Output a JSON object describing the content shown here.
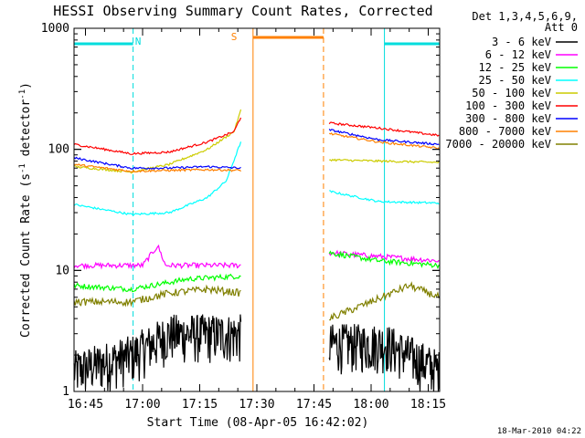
{
  "chart_data": {
    "type": "line",
    "title": "HESSI Observing Summary Count Rates, Corrected",
    "xlabel": "Start Time (08-Apr-05 16:42:02)",
    "ylabel_main": "Corrected Count Rate (s",
    "ylabel_sup1": "-1",
    "ylabel_mid": " detector",
    "ylabel_sup2": "-1",
    "ylabel_end": ")",
    "yscale": "log",
    "ylim": [
      1,
      1000
    ],
    "xlim_minutes": [
      0,
      96
    ],
    "x_ticks": [
      "16:45",
      "17:00",
      "17:15",
      "17:30",
      "17:45",
      "18:00",
      "18:15"
    ],
    "y_ticks": [
      "1",
      "10",
      "100",
      "1000"
    ],
    "legend_header": [
      "Det 1,3,4,5,6,9,",
      "Att 0"
    ],
    "timestamp": "18-Mar-2010 04:22",
    "night_label": "N",
    "saa_label": "S",
    "night_intervals": [
      [
        0,
        15.5
      ],
      [
        81.5,
        96
      ]
    ],
    "saa_interval": [
      47,
      65.5
    ],
    "data_gap": [
      44.5,
      67
    ],
    "series": [
      {
        "name": "3 - 6 keV",
        "color": "#000000",
        "before": [
          [
            0,
            1.5
          ],
          [
            15,
            2
          ],
          [
            25,
            3
          ],
          [
            35,
            3
          ],
          [
            44,
            3
          ]
        ],
        "after": [
          [
            67,
            2.5
          ],
          [
            82,
            2.5
          ],
          [
            96,
            1.5
          ]
        ],
        "noise": 0.45
      },
      {
        "name": "6 - 12 keV",
        "color": "#ff00ff",
        "before": [
          [
            0,
            11
          ],
          [
            18,
            11
          ],
          [
            22,
            16
          ],
          [
            24,
            11
          ],
          [
            44,
            11
          ]
        ],
        "after": [
          [
            67,
            14
          ],
          [
            96,
            12
          ]
        ],
        "noise": 0.05
      },
      {
        "name": "12 - 25 keV",
        "color": "#00ff00",
        "before": [
          [
            0,
            7.5
          ],
          [
            15,
            7
          ],
          [
            30,
            8.5
          ],
          [
            44,
            9
          ]
        ],
        "after": [
          [
            67,
            14
          ],
          [
            80,
            12
          ],
          [
            96,
            11
          ]
        ],
        "noise": 0.05
      },
      {
        "name": "25 - 50 keV",
        "color": "#00ffff",
        "before": [
          [
            0,
            35
          ],
          [
            15,
            29
          ],
          [
            25,
            30
          ],
          [
            35,
            40
          ],
          [
            40,
            55
          ],
          [
            44,
            120
          ]
        ],
        "after": [
          [
            67,
            45
          ],
          [
            80,
            37
          ],
          [
            96,
            36
          ]
        ],
        "noise": 0.02
      },
      {
        "name": "50 - 100 keV",
        "color": "#cccc00",
        "before": [
          [
            0,
            72
          ],
          [
            15,
            65
          ],
          [
            25,
            75
          ],
          [
            35,
            100
          ],
          [
            42,
            140
          ],
          [
            44,
            220
          ]
        ],
        "after": [
          [
            67,
            82
          ],
          [
            80,
            80
          ],
          [
            96,
            78
          ]
        ],
        "noise": 0.02
      },
      {
        "name": "100 - 300 keV",
        "color": "#ff0000",
        "before": [
          [
            0,
            110
          ],
          [
            15,
            92
          ],
          [
            25,
            95
          ],
          [
            35,
            115
          ],
          [
            42,
            140
          ],
          [
            44,
            190
          ]
        ],
        "after": [
          [
            67,
            165
          ],
          [
            80,
            150
          ],
          [
            96,
            130
          ]
        ],
        "noise": 0.02
      },
      {
        "name": "300 - 800 keV",
        "color": "#0000ff",
        "before": [
          [
            0,
            85
          ],
          [
            15,
            70
          ],
          [
            25,
            70
          ],
          [
            35,
            72
          ],
          [
            44,
            70
          ]
        ],
        "after": [
          [
            67,
            145
          ],
          [
            80,
            120
          ],
          [
            96,
            110
          ]
        ],
        "noise": 0.02
      },
      {
        "name": "800 - 7000 keV",
        "color": "#ff8000",
        "before": [
          [
            0,
            75
          ],
          [
            15,
            66
          ],
          [
            25,
            67
          ],
          [
            35,
            68
          ],
          [
            44,
            67
          ]
        ],
        "after": [
          [
            67,
            135
          ],
          [
            80,
            115
          ],
          [
            96,
            102
          ]
        ],
        "noise": 0.02
      },
      {
        "name": "7000 - 20000 keV",
        "color": "#808000",
        "before": [
          [
            0,
            5.5
          ],
          [
            15,
            5.5
          ],
          [
            25,
            6.5
          ],
          [
            35,
            7
          ],
          [
            44,
            6.5
          ]
        ],
        "after": [
          [
            67,
            4
          ],
          [
            78,
            5.5
          ],
          [
            88,
            7.5
          ],
          [
            96,
            6
          ]
        ],
        "noise": 0.07
      }
    ]
  }
}
